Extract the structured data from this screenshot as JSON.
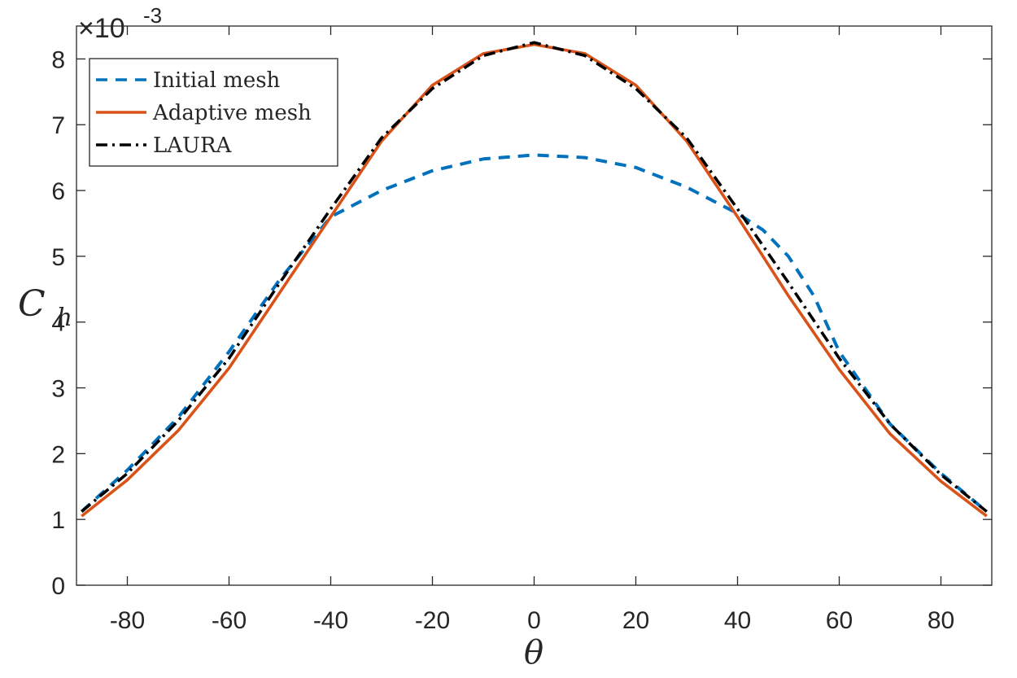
{
  "chart_data": {
    "type": "line",
    "title": "",
    "xlabel": "θ",
    "ylabel_main": "C",
    "ylabel_sub": "h",
    "xlim": [
      -90,
      90
    ],
    "ylim": [
      0,
      8.5
    ],
    "y_scale_label": "×10",
    "y_scale_exponent": "-3",
    "x_ticks": [
      -80,
      -60,
      -40,
      -20,
      0,
      20,
      40,
      60,
      80
    ],
    "y_ticks": [
      0,
      1,
      2,
      3,
      4,
      5,
      6,
      7,
      8
    ],
    "legend_position": "top-left",
    "series": [
      {
        "name": "Initial mesh",
        "style": "dashed",
        "color": "#0072BD",
        "x": [
          -89,
          -80,
          -70,
          -60,
          -50,
          -40,
          -30,
          -20,
          -10,
          0,
          10,
          20,
          30,
          40,
          45,
          50,
          55,
          60,
          70,
          80,
          89
        ],
        "y": [
          1.12,
          1.75,
          2.55,
          3.55,
          4.65,
          5.6,
          6.0,
          6.3,
          6.48,
          6.54,
          6.5,
          6.35,
          6.05,
          5.65,
          5.4,
          5.0,
          4.4,
          3.55,
          2.45,
          1.7,
          1.12
        ]
      },
      {
        "name": "Adaptive mesh",
        "style": "solid",
        "color": "#D95319",
        "x": [
          -89,
          -80,
          -70,
          -60,
          -50,
          -40,
          -30,
          -20,
          -10,
          0,
          10,
          20,
          30,
          40,
          50,
          60,
          70,
          80,
          89
        ],
        "y": [
          1.05,
          1.6,
          2.35,
          3.3,
          4.45,
          5.6,
          6.75,
          7.6,
          8.08,
          8.22,
          8.08,
          7.6,
          6.75,
          5.6,
          4.4,
          3.28,
          2.3,
          1.58,
          1.05
        ]
      },
      {
        "name": "LAURA",
        "style": "dashdot",
        "color": "#000000",
        "x": [
          -89,
          -80,
          -70,
          -60,
          -50,
          -40,
          -30,
          -20,
          -10,
          0,
          10,
          20,
          30,
          40,
          50,
          60,
          70,
          80,
          89
        ],
        "y": [
          1.12,
          1.7,
          2.5,
          3.45,
          4.6,
          5.72,
          6.8,
          7.55,
          8.05,
          8.25,
          8.05,
          7.55,
          6.8,
          5.72,
          4.6,
          3.45,
          2.45,
          1.68,
          1.12
        ]
      }
    ]
  }
}
